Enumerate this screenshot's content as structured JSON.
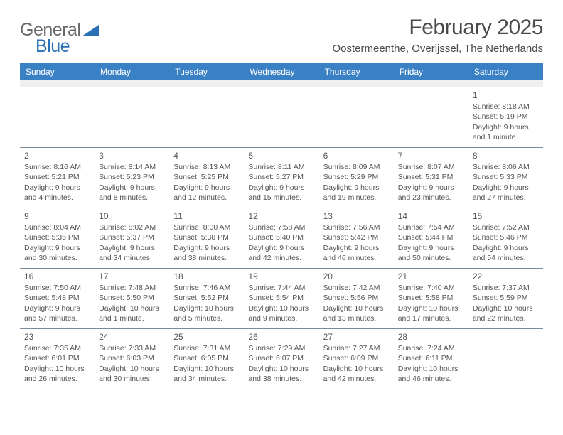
{
  "logo": {
    "word1": "General",
    "word2": "Blue"
  },
  "title": "February 2025",
  "location": "Oostermeenthe, Overijssel, The Netherlands",
  "style": {
    "header_bg": "#3a80c4",
    "header_fg": "#ffffff",
    "border_color": "#7a8aa0",
    "spacer_bg": "#efefef",
    "page_bg": "#ffffff",
    "text_color": "#555555",
    "title_color": "#4a4a4a",
    "logo_gray": "#6a6a6a",
    "logo_blue": "#2b6fb5",
    "title_fontsize": 30,
    "location_fontsize": 15,
    "dow_fontsize": 12,
    "cell_fontsize": 10.5,
    "columns": 7
  },
  "dow": [
    "Sunday",
    "Monday",
    "Tuesday",
    "Wednesday",
    "Thursday",
    "Friday",
    "Saturday"
  ],
  "weeks": [
    [
      {
        "n": "",
        "sr": "",
        "ss": "",
        "dl": ""
      },
      {
        "n": "",
        "sr": "",
        "ss": "",
        "dl": ""
      },
      {
        "n": "",
        "sr": "",
        "ss": "",
        "dl": ""
      },
      {
        "n": "",
        "sr": "",
        "ss": "",
        "dl": ""
      },
      {
        "n": "",
        "sr": "",
        "ss": "",
        "dl": ""
      },
      {
        "n": "",
        "sr": "",
        "ss": "",
        "dl": ""
      },
      {
        "n": "1",
        "sr": "Sunrise: 8:18 AM",
        "ss": "Sunset: 5:19 PM",
        "dl": "Daylight: 9 hours and 1 minute."
      }
    ],
    [
      {
        "n": "2",
        "sr": "Sunrise: 8:16 AM",
        "ss": "Sunset: 5:21 PM",
        "dl": "Daylight: 9 hours and 4 minutes."
      },
      {
        "n": "3",
        "sr": "Sunrise: 8:14 AM",
        "ss": "Sunset: 5:23 PM",
        "dl": "Daylight: 9 hours and 8 minutes."
      },
      {
        "n": "4",
        "sr": "Sunrise: 8:13 AM",
        "ss": "Sunset: 5:25 PM",
        "dl": "Daylight: 9 hours and 12 minutes."
      },
      {
        "n": "5",
        "sr": "Sunrise: 8:11 AM",
        "ss": "Sunset: 5:27 PM",
        "dl": "Daylight: 9 hours and 15 minutes."
      },
      {
        "n": "6",
        "sr": "Sunrise: 8:09 AM",
        "ss": "Sunset: 5:29 PM",
        "dl": "Daylight: 9 hours and 19 minutes."
      },
      {
        "n": "7",
        "sr": "Sunrise: 8:07 AM",
        "ss": "Sunset: 5:31 PM",
        "dl": "Daylight: 9 hours and 23 minutes."
      },
      {
        "n": "8",
        "sr": "Sunrise: 8:06 AM",
        "ss": "Sunset: 5:33 PM",
        "dl": "Daylight: 9 hours and 27 minutes."
      }
    ],
    [
      {
        "n": "9",
        "sr": "Sunrise: 8:04 AM",
        "ss": "Sunset: 5:35 PM",
        "dl": "Daylight: 9 hours and 30 minutes."
      },
      {
        "n": "10",
        "sr": "Sunrise: 8:02 AM",
        "ss": "Sunset: 5:37 PM",
        "dl": "Daylight: 9 hours and 34 minutes."
      },
      {
        "n": "11",
        "sr": "Sunrise: 8:00 AM",
        "ss": "Sunset: 5:38 PM",
        "dl": "Daylight: 9 hours and 38 minutes."
      },
      {
        "n": "12",
        "sr": "Sunrise: 7:58 AM",
        "ss": "Sunset: 5:40 PM",
        "dl": "Daylight: 9 hours and 42 minutes."
      },
      {
        "n": "13",
        "sr": "Sunrise: 7:56 AM",
        "ss": "Sunset: 5:42 PM",
        "dl": "Daylight: 9 hours and 46 minutes."
      },
      {
        "n": "14",
        "sr": "Sunrise: 7:54 AM",
        "ss": "Sunset: 5:44 PM",
        "dl": "Daylight: 9 hours and 50 minutes."
      },
      {
        "n": "15",
        "sr": "Sunrise: 7:52 AM",
        "ss": "Sunset: 5:46 PM",
        "dl": "Daylight: 9 hours and 54 minutes."
      }
    ],
    [
      {
        "n": "16",
        "sr": "Sunrise: 7:50 AM",
        "ss": "Sunset: 5:48 PM",
        "dl": "Daylight: 9 hours and 57 minutes."
      },
      {
        "n": "17",
        "sr": "Sunrise: 7:48 AM",
        "ss": "Sunset: 5:50 PM",
        "dl": "Daylight: 10 hours and 1 minute."
      },
      {
        "n": "18",
        "sr": "Sunrise: 7:46 AM",
        "ss": "Sunset: 5:52 PM",
        "dl": "Daylight: 10 hours and 5 minutes."
      },
      {
        "n": "19",
        "sr": "Sunrise: 7:44 AM",
        "ss": "Sunset: 5:54 PM",
        "dl": "Daylight: 10 hours and 9 minutes."
      },
      {
        "n": "20",
        "sr": "Sunrise: 7:42 AM",
        "ss": "Sunset: 5:56 PM",
        "dl": "Daylight: 10 hours and 13 minutes."
      },
      {
        "n": "21",
        "sr": "Sunrise: 7:40 AM",
        "ss": "Sunset: 5:58 PM",
        "dl": "Daylight: 10 hours and 17 minutes."
      },
      {
        "n": "22",
        "sr": "Sunrise: 7:37 AM",
        "ss": "Sunset: 5:59 PM",
        "dl": "Daylight: 10 hours and 22 minutes."
      }
    ],
    [
      {
        "n": "23",
        "sr": "Sunrise: 7:35 AM",
        "ss": "Sunset: 6:01 PM",
        "dl": "Daylight: 10 hours and 26 minutes."
      },
      {
        "n": "24",
        "sr": "Sunrise: 7:33 AM",
        "ss": "Sunset: 6:03 PM",
        "dl": "Daylight: 10 hours and 30 minutes."
      },
      {
        "n": "25",
        "sr": "Sunrise: 7:31 AM",
        "ss": "Sunset: 6:05 PM",
        "dl": "Daylight: 10 hours and 34 minutes."
      },
      {
        "n": "26",
        "sr": "Sunrise: 7:29 AM",
        "ss": "Sunset: 6:07 PM",
        "dl": "Daylight: 10 hours and 38 minutes."
      },
      {
        "n": "27",
        "sr": "Sunrise: 7:27 AM",
        "ss": "Sunset: 6:09 PM",
        "dl": "Daylight: 10 hours and 42 minutes."
      },
      {
        "n": "28",
        "sr": "Sunrise: 7:24 AM",
        "ss": "Sunset: 6:11 PM",
        "dl": "Daylight: 10 hours and 46 minutes."
      },
      {
        "n": "",
        "sr": "",
        "ss": "",
        "dl": ""
      }
    ]
  ]
}
